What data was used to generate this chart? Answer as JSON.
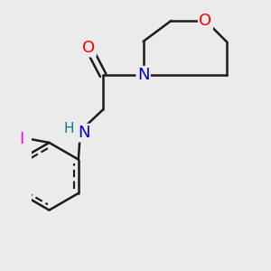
{
  "background_color": "#ebebeb",
  "bond_color": "#1a1a1a",
  "bond_width": 1.8,
  "atom_colors": {
    "O": "#ff0000",
    "N": "#0000cc",
    "H": "#008080",
    "I": "#ee00ee",
    "C": "#1a1a1a"
  },
  "font_size": 13,
  "fig_size": [
    3.0,
    3.0
  ],
  "dpi": 100
}
